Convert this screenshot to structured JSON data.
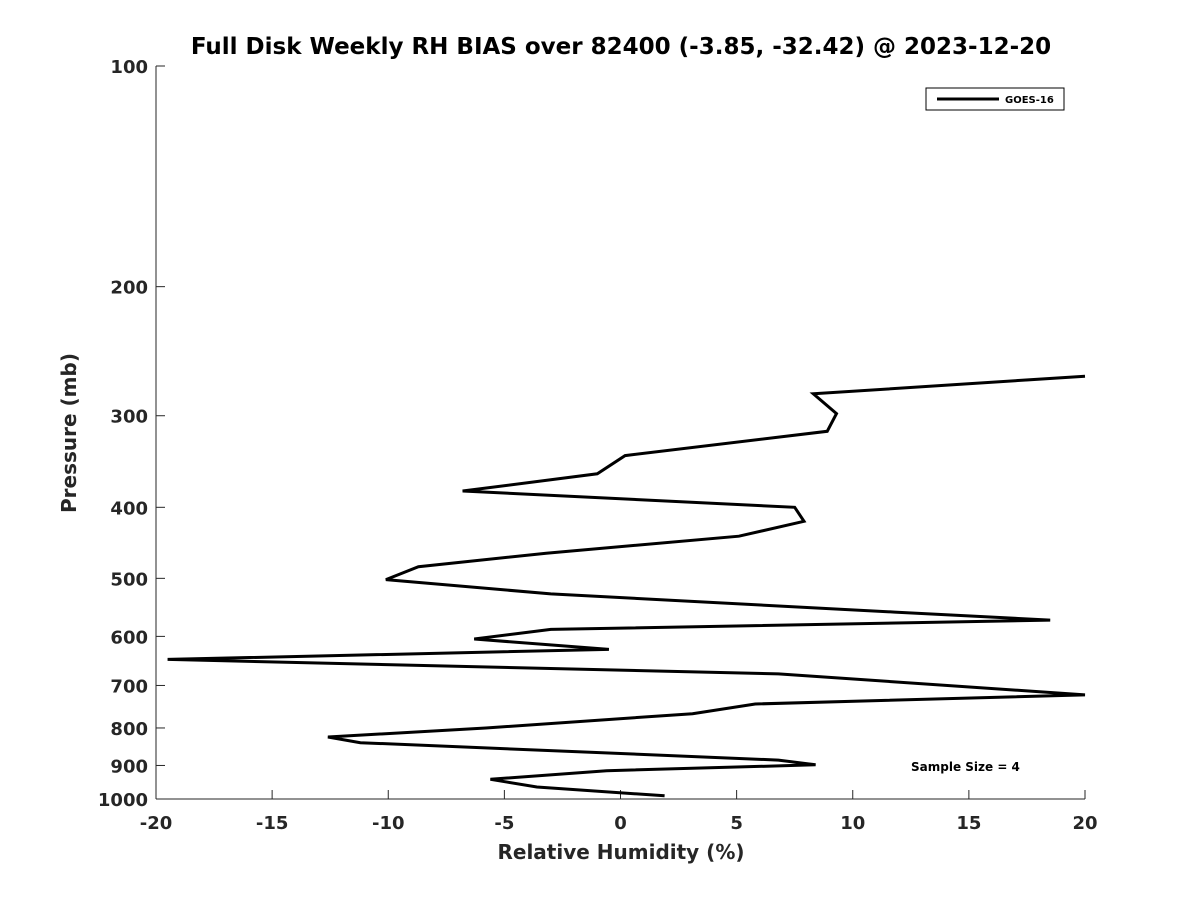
{
  "chart_data": {
    "type": "line",
    "title": "Full Disk Weekly RH BIAS over 82400 (-3.85, -32.42) @ 2023-12-20",
    "xlabel": "Relative Humidity (%)",
    "ylabel": "Pressure (mb)",
    "xlim": [
      -20,
      20
    ],
    "ylim": [
      100,
      1000
    ],
    "y_scale": "log",
    "y_reversed": true,
    "x_ticks": [
      -20,
      -15,
      -10,
      -5,
      0,
      5,
      10,
      15,
      20
    ],
    "y_ticks": [
      100,
      200,
      300,
      400,
      500,
      600,
      700,
      800,
      900,
      1000
    ],
    "grid": false,
    "legend_position": "top-right",
    "series": [
      {
        "name": "GOES-16",
        "color": "#000000",
        "x": [
          20,
          8.3,
          9.3,
          8.9,
          0.2,
          -1.0,
          -6.8,
          7.5,
          7.9,
          5.1,
          -3.2,
          -8.7,
          -10.1,
          -3.0,
          11.8,
          18.5,
          -3.0,
          -6.3,
          -0.5,
          -19.5,
          6.8,
          20,
          5.8,
          3.1,
          -5.8,
          -12.6,
          -11.2,
          6.8,
          8.4,
          -0.6,
          -5.6,
          -3.6,
          1.9
        ],
        "y": [
          265,
          280,
          298,
          315,
          340,
          360,
          380,
          400,
          418,
          438,
          462,
          482,
          502,
          525,
          556,
          570,
          587,
          605,
          625,
          645,
          675,
          721,
          742,
          765,
          800,
          823,
          838,
          885,
          898,
          915,
          940,
          963,
          990
        ]
      }
    ],
    "annotations": [
      "Sample Size = 4"
    ]
  }
}
